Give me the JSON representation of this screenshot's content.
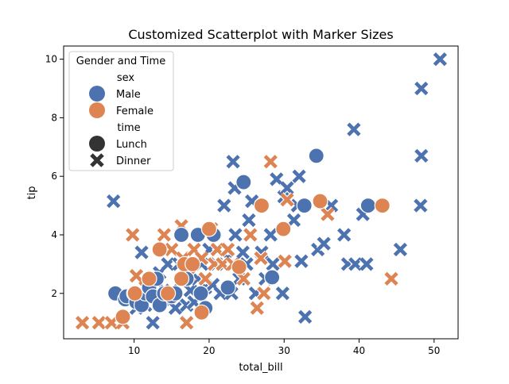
{
  "chart_data": {
    "type": "scatter",
    "title": "Customized Scatterplot with Marker Sizes",
    "xlabel": "total_bill",
    "ylabel": "tip",
    "xlim": [
      0.6,
      53.2
    ],
    "ylim": [
      0.45,
      10.45
    ],
    "xticks": [
      10,
      20,
      30,
      40,
      50
    ],
    "yticks": [
      2,
      4,
      6,
      8,
      10
    ],
    "grid": false,
    "legend": {
      "title": "Gender and Time",
      "placement": "top-left",
      "hue_title": "sex",
      "hue_items": [
        {
          "label": "Male",
          "color": "#4c72b0"
        },
        {
          "label": "Female",
          "color": "#dd8452"
        }
      ],
      "style_title": "time",
      "style_items": [
        {
          "label": "Lunch",
          "marker": "circle"
        },
        {
          "label": "Dinner",
          "marker": "x"
        }
      ]
    },
    "series": [
      {
        "sex": "Male",
        "time": "Dinner",
        "color": "#4c72b0",
        "marker": "x",
        "points": [
          [
            7.25,
            5.15
          ],
          [
            10.3,
            1.5
          ],
          [
            11.0,
            3.4
          ],
          [
            11.5,
            1.6
          ],
          [
            12.5,
            1.0
          ],
          [
            13.0,
            2.4
          ],
          [
            13.4,
            2.7
          ],
          [
            14.0,
            1.8
          ],
          [
            14.5,
            3.0
          ],
          [
            15.0,
            2.1
          ],
          [
            15.5,
            1.5
          ],
          [
            16.0,
            3.0
          ],
          [
            16.5,
            2.5
          ],
          [
            17.0,
            1.6
          ],
          [
            17.5,
            2.1
          ],
          [
            18.0,
            1.7
          ],
          [
            18.5,
            2.5
          ],
          [
            19.0,
            3.0
          ],
          [
            19.5,
            2.2
          ],
          [
            20.0,
            3.5
          ],
          [
            20.5,
            2.3
          ],
          [
            21.0,
            3.0
          ],
          [
            21.5,
            2.0
          ],
          [
            22.0,
            5.0
          ],
          [
            22.5,
            3.2
          ],
          [
            23.0,
            2.0
          ],
          [
            23.2,
            6.5
          ],
          [
            23.4,
            5.6
          ],
          [
            23.5,
            4.0
          ],
          [
            24.0,
            2.5
          ],
          [
            24.5,
            3.4
          ],
          [
            25.0,
            3.0
          ],
          [
            25.3,
            4.5
          ],
          [
            25.7,
            5.15
          ],
          [
            26.2,
            2.0
          ],
          [
            27.0,
            3.4
          ],
          [
            27.5,
            2.5
          ],
          [
            28.2,
            4.0
          ],
          [
            28.5,
            3.0
          ],
          [
            29.0,
            5.9
          ],
          [
            29.8,
            2.0
          ],
          [
            30.0,
            5.3
          ],
          [
            30.4,
            5.6
          ],
          [
            31.3,
            4.5
          ],
          [
            31.8,
            5.0
          ],
          [
            32.0,
            6.0
          ],
          [
            32.3,
            3.1
          ],
          [
            32.8,
            1.2
          ],
          [
            34.5,
            3.5
          ],
          [
            35.3,
            3.7
          ],
          [
            36.3,
            5.0
          ],
          [
            38.0,
            4.0
          ],
          [
            38.5,
            3.0
          ],
          [
            39.3,
            7.6
          ],
          [
            39.5,
            3.0
          ],
          [
            40.5,
            4.7
          ],
          [
            41.0,
            3.0
          ],
          [
            45.5,
            3.5
          ],
          [
            48.2,
            5.0
          ],
          [
            48.3,
            6.7
          ],
          [
            48.3,
            9.0
          ],
          [
            50.8,
            10.0
          ]
        ]
      },
      {
        "sex": "Female",
        "time": "Dinner",
        "color": "#dd8452",
        "marker": "x",
        "points": [
          [
            3.1,
            1.0
          ],
          [
            5.3,
            1.0
          ],
          [
            7.0,
            1.0
          ],
          [
            8.5,
            1.0
          ],
          [
            9.8,
            4.0
          ],
          [
            10.3,
            2.6
          ],
          [
            11.5,
            2.2
          ],
          [
            14.0,
            4.0
          ],
          [
            15.0,
            3.5
          ],
          [
            16.3,
            4.3
          ],
          [
            16.5,
            3.2
          ],
          [
            17.0,
            1.0
          ],
          [
            17.3,
            2.6
          ],
          [
            18.0,
            3.5
          ],
          [
            19.0,
            3.2
          ],
          [
            19.5,
            2.5
          ],
          [
            20.3,
            4.2
          ],
          [
            20.7,
            3.0
          ],
          [
            21.1,
            3.5
          ],
          [
            21.8,
            3.0
          ],
          [
            22.5,
            3.5
          ],
          [
            23.2,
            3.0
          ],
          [
            24.6,
            2.5
          ],
          [
            25.5,
            4.0
          ],
          [
            26.4,
            1.5
          ],
          [
            26.9,
            3.2
          ],
          [
            27.3,
            2.0
          ],
          [
            28.2,
            6.5
          ],
          [
            30.1,
            3.1
          ],
          [
            30.4,
            5.2
          ],
          [
            35.8,
            4.7
          ],
          [
            44.3,
            2.5
          ]
        ]
      },
      {
        "sex": "Male",
        "time": "Lunch",
        "color": "#4c72b0",
        "marker": "circle",
        "points": [
          [
            7.5,
            2.0
          ],
          [
            8.8,
            1.8
          ],
          [
            9.0,
            1.9
          ],
          [
            10.0,
            2.0
          ],
          [
            10.3,
            1.7
          ],
          [
            11.0,
            1.6
          ],
          [
            11.5,
            2.0
          ],
          [
            12.0,
            2.2
          ],
          [
            12.5,
            1.9
          ],
          [
            13.0,
            2.5
          ],
          [
            13.4,
            1.6
          ],
          [
            14.0,
            2.0
          ],
          [
            15.0,
            1.9
          ],
          [
            15.5,
            2.0
          ],
          [
            16.3,
            4.0
          ],
          [
            17.0,
            2.5
          ],
          [
            18.5,
            4.0
          ],
          [
            18.9,
            2.0
          ],
          [
            19.5,
            1.5
          ],
          [
            20.6,
            4.0
          ],
          [
            22.5,
            2.2
          ],
          [
            24.6,
            5.8
          ],
          [
            28.4,
            2.55
          ],
          [
            32.7,
            5.0
          ],
          [
            34.3,
            6.7
          ],
          [
            41.2,
            5.0
          ]
        ]
      },
      {
        "sex": "Female",
        "time": "Lunch",
        "color": "#dd8452",
        "marker": "circle",
        "points": [
          [
            8.5,
            1.2
          ],
          [
            10.1,
            2.0
          ],
          [
            12.0,
            2.5
          ],
          [
            13.4,
            3.5
          ],
          [
            14.5,
            2.0
          ],
          [
            16.3,
            2.5
          ],
          [
            16.7,
            3.0
          ],
          [
            17.8,
            3.0
          ],
          [
            19.0,
            1.35
          ],
          [
            20.0,
            4.2
          ],
          [
            24.0,
            2.9
          ],
          [
            27.0,
            5.0
          ],
          [
            29.9,
            4.2
          ],
          [
            34.8,
            5.15
          ],
          [
            43.1,
            5.0
          ]
        ]
      }
    ]
  }
}
